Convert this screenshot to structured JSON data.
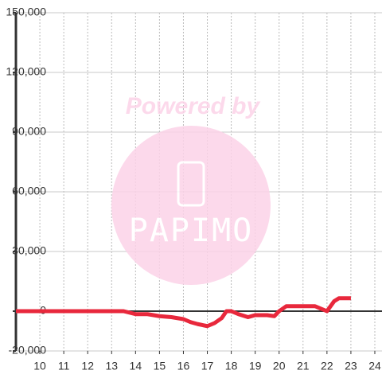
{
  "chart_data": {
    "type": "line",
    "x": [
      9,
      10,
      11,
      12,
      13,
      13.5,
      14,
      14.5,
      15,
      15.5,
      16,
      16.3,
      16.6,
      17,
      17.3,
      17.6,
      17.8,
      18,
      18.3,
      18.7,
      19,
      19.5,
      19.8,
      20,
      20.3,
      21,
      21.5,
      22,
      22.3,
      22.5,
      23
    ],
    "series": [
      {
        "color": "#e8283c",
        "values": [
          0,
          0,
          0,
          0,
          0,
          0,
          -1500,
          -1500,
          -2500,
          -3000,
          -4000,
          -5500,
          -6500,
          -7500,
          -6000,
          -3500,
          0,
          0,
          -1500,
          -3000,
          -2000,
          -2000,
          -2500,
          0,
          2500,
          2500,
          2500,
          0,
          5000,
          6500,
          6500
        ]
      }
    ],
    "xlim": [
      9,
      24.3
    ],
    "xticks": [
      10,
      11,
      12,
      13,
      14,
      15,
      16,
      17,
      18,
      19,
      20,
      21,
      22,
      23,
      24
    ],
    "ylim": [
      -20000,
      150000
    ],
    "yticks": [
      {
        "value": -20000,
        "label": "-20,000"
      },
      0,
      {
        "value": 30000,
        "label": "30,000"
      },
      {
        "value": 60000,
        "label": "60,000"
      },
      {
        "value": 90000,
        "label": "90,000"
      },
      {
        "value": 120000,
        "label": "120,000"
      },
      {
        "value": 150000,
        "label": "150,000"
      }
    ],
    "grid": true,
    "watermark": {
      "caption": "Powered by",
      "logo": "PAPIMO"
    }
  }
}
